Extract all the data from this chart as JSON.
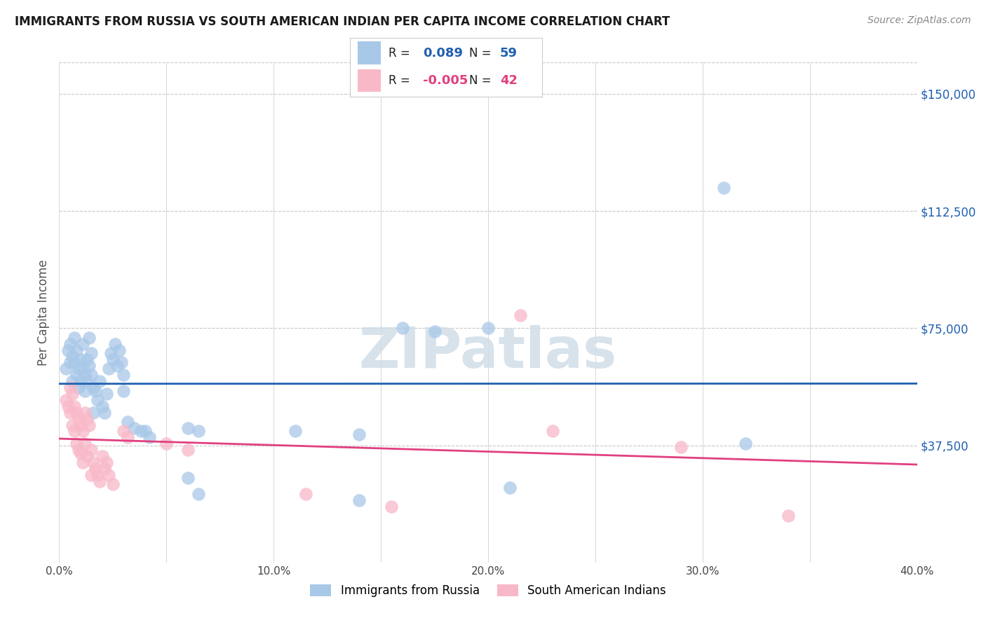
{
  "title": "IMMIGRANTS FROM RUSSIA VS SOUTH AMERICAN INDIAN PER CAPITA INCOME CORRELATION CHART",
  "source": "Source: ZipAtlas.com",
  "ylabel": "Per Capita Income",
  "xlim": [
    0.0,
    0.4
  ],
  "ylim": [
    0,
    160000
  ],
  "yticks": [
    0,
    37500,
    75000,
    112500,
    150000
  ],
  "ytick_labels": [
    "",
    "$37,500",
    "$75,000",
    "$112,500",
    "$150,000"
  ],
  "background_color": "#ffffff",
  "grid_color": "#c8c8c8",
  "watermark": "ZIPatlas",
  "legend_label1": "Immigrants from Russia",
  "legend_label2": "South American Indians",
  "R1": "0.089",
  "N1": "59",
  "R2": "-0.005",
  "N2": "42",
  "blue_color": "#a8c8e8",
  "pink_color": "#f8b8c8",
  "blue_line_color": "#2060b0",
  "pink_line_color": "#e04080",
  "blue_scatter": [
    [
      0.003,
      62000
    ],
    [
      0.004,
      68000
    ],
    [
      0.005,
      64000
    ],
    [
      0.005,
      70000
    ],
    [
      0.006,
      58000
    ],
    [
      0.006,
      66000
    ],
    [
      0.007,
      72000
    ],
    [
      0.007,
      64000
    ],
    [
      0.008,
      60000
    ],
    [
      0.008,
      68000
    ],
    [
      0.009,
      56000
    ],
    [
      0.009,
      62000
    ],
    [
      0.01,
      65000
    ],
    [
      0.01,
      58000
    ],
    [
      0.011,
      70000
    ],
    [
      0.011,
      62000
    ],
    [
      0.012,
      60000
    ],
    [
      0.012,
      55000
    ],
    [
      0.013,
      65000
    ],
    [
      0.013,
      58000
    ],
    [
      0.014,
      72000
    ],
    [
      0.014,
      63000
    ],
    [
      0.015,
      67000
    ],
    [
      0.015,
      60000
    ],
    [
      0.016,
      56000
    ],
    [
      0.016,
      48000
    ],
    [
      0.017,
      55000
    ],
    [
      0.018,
      52000
    ],
    [
      0.019,
      58000
    ],
    [
      0.02,
      50000
    ],
    [
      0.021,
      48000
    ],
    [
      0.022,
      54000
    ],
    [
      0.023,
      62000
    ],
    [
      0.024,
      67000
    ],
    [
      0.025,
      65000
    ],
    [
      0.026,
      70000
    ],
    [
      0.027,
      63000
    ],
    [
      0.028,
      68000
    ],
    [
      0.029,
      64000
    ],
    [
      0.03,
      60000
    ],
    [
      0.03,
      55000
    ],
    [
      0.032,
      45000
    ],
    [
      0.035,
      43000
    ],
    [
      0.038,
      42000
    ],
    [
      0.04,
      42000
    ],
    [
      0.042,
      40000
    ],
    [
      0.06,
      43000
    ],
    [
      0.065,
      42000
    ],
    [
      0.11,
      42000
    ],
    [
      0.14,
      41000
    ],
    [
      0.16,
      75000
    ],
    [
      0.175,
      74000
    ],
    [
      0.2,
      75000
    ],
    [
      0.065,
      22000
    ],
    [
      0.14,
      20000
    ],
    [
      0.21,
      24000
    ],
    [
      0.06,
      27000
    ],
    [
      0.31,
      120000
    ],
    [
      0.32,
      38000
    ]
  ],
  "pink_scatter": [
    [
      0.003,
      52000
    ],
    [
      0.004,
      50000
    ],
    [
      0.005,
      56000
    ],
    [
      0.005,
      48000
    ],
    [
      0.006,
      54000
    ],
    [
      0.006,
      44000
    ],
    [
      0.007,
      50000
    ],
    [
      0.007,
      42000
    ],
    [
      0.008,
      48000
    ],
    [
      0.008,
      38000
    ],
    [
      0.009,
      46000
    ],
    [
      0.009,
      36000
    ],
    [
      0.01,
      44000
    ],
    [
      0.01,
      35000
    ],
    [
      0.011,
      42000
    ],
    [
      0.011,
      32000
    ],
    [
      0.012,
      48000
    ],
    [
      0.012,
      38000
    ],
    [
      0.013,
      46000
    ],
    [
      0.013,
      34000
    ],
    [
      0.014,
      44000
    ],
    [
      0.015,
      36000
    ],
    [
      0.015,
      28000
    ],
    [
      0.016,
      32000
    ],
    [
      0.017,
      30000
    ],
    [
      0.018,
      28000
    ],
    [
      0.019,
      26000
    ],
    [
      0.02,
      34000
    ],
    [
      0.021,
      30000
    ],
    [
      0.022,
      32000
    ],
    [
      0.023,
      28000
    ],
    [
      0.025,
      25000
    ],
    [
      0.03,
      42000
    ],
    [
      0.032,
      40000
    ],
    [
      0.05,
      38000
    ],
    [
      0.06,
      36000
    ],
    [
      0.115,
      22000
    ],
    [
      0.215,
      79000
    ],
    [
      0.23,
      42000
    ],
    [
      0.29,
      37000
    ],
    [
      0.155,
      18000
    ],
    [
      0.34,
      15000
    ]
  ]
}
